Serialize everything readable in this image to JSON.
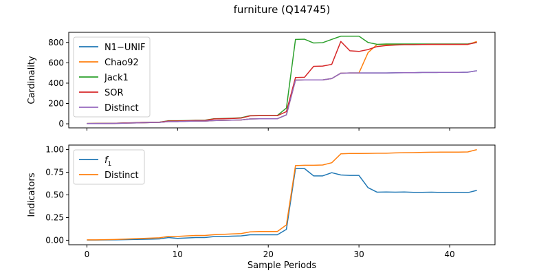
{
  "figure_title": "furniture (Q14745)",
  "chart_data": [
    {
      "type": "line",
      "ylabel": "Cardinality",
      "xlabel": "",
      "xlim": [
        -2,
        45
      ],
      "ylim": [
        -40,
        900
      ],
      "xticks": [
        0,
        10,
        20,
        30,
        40
      ],
      "yticks": [
        0,
        200,
        400,
        600,
        800
      ],
      "legend": "top-left",
      "x": [
        0,
        1,
        2,
        3,
        4,
        5,
        6,
        7,
        8,
        9,
        10,
        11,
        12,
        13,
        14,
        15,
        16,
        17,
        18,
        19,
        20,
        21,
        22,
        23,
        24,
        25,
        26,
        27,
        28,
        29,
        30,
        31,
        32,
        33,
        34,
        35,
        36,
        37,
        38,
        39,
        40,
        41,
        42,
        43
      ],
      "series": [
        {
          "name": "N1−UNIF",
          "color": "#1f77b4",
          "values": [
            2,
            2,
            3,
            4,
            6,
            8,
            10,
            12,
            14,
            22,
            22,
            25,
            27,
            27,
            32,
            34,
            36,
            38,
            48,
            50,
            50,
            50,
            88,
            430,
            432,
            432,
            432,
            445,
            498,
            500,
            500,
            500,
            500,
            500,
            502,
            503,
            503,
            505,
            505,
            506,
            506,
            506,
            508,
            522
          ]
        },
        {
          "name": "Chao92",
          "color": "#ff7f0e",
          "values": [
            2,
            2,
            3,
            4,
            6,
            8,
            10,
            12,
            14,
            22,
            22,
            25,
            27,
            27,
            32,
            34,
            36,
            38,
            48,
            50,
            50,
            50,
            88,
            430,
            432,
            432,
            432,
            445,
            498,
            500,
            500,
            700,
            780,
            780,
            780,
            780,
            780,
            780,
            780,
            780,
            780,
            780,
            780,
            810
          ]
        },
        {
          "name": "Jack1",
          "color": "#2ca02c",
          "values": [
            3,
            4,
            4,
            5,
            8,
            10,
            13,
            15,
            16,
            30,
            30,
            32,
            35,
            35,
            50,
            52,
            55,
            60,
            80,
            82,
            82,
            82,
            155,
            830,
            832,
            795,
            798,
            830,
            862,
            862,
            862,
            800,
            782,
            785,
            785,
            785,
            785,
            785,
            785,
            785,
            785,
            785,
            785,
            800
          ]
        },
        {
          "name": "SOR",
          "color": "#d62728",
          "values": [
            3,
            4,
            4,
            5,
            8,
            10,
            13,
            15,
            16,
            28,
            28,
            30,
            33,
            33,
            48,
            50,
            52,
            56,
            78,
            80,
            80,
            80,
            120,
            455,
            458,
            565,
            568,
            585,
            810,
            718,
            712,
            730,
            760,
            770,
            775,
            778,
            778,
            780,
            782,
            782,
            782,
            782,
            782,
            800
          ]
        },
        {
          "name": "Distinct",
          "color": "#9467bd",
          "values": [
            2,
            2,
            3,
            4,
            6,
            8,
            10,
            12,
            14,
            22,
            22,
            25,
            27,
            27,
            32,
            34,
            36,
            38,
            48,
            50,
            50,
            50,
            88,
            430,
            432,
            432,
            432,
            445,
            498,
            500,
            500,
            500,
            500,
            500,
            502,
            503,
            503,
            505,
            505,
            506,
            506,
            506,
            508,
            522
          ]
        }
      ]
    },
    {
      "type": "line",
      "ylabel": "Indicators",
      "xlabel": "Sample Periods",
      "xlim": [
        -2,
        45
      ],
      "ylim": [
        -0.05,
        1.05
      ],
      "xticks": [
        0,
        10,
        20,
        30,
        40
      ],
      "yticks": [
        0.0,
        0.25,
        0.5,
        0.75,
        1.0
      ],
      "ytick_labels": [
        "0.00",
        "0.25",
        "0.50",
        "0.75",
        "1.00"
      ],
      "legend": "top-left",
      "x": [
        0,
        1,
        2,
        3,
        4,
        5,
        6,
        7,
        8,
        9,
        10,
        11,
        12,
        13,
        14,
        15,
        16,
        17,
        18,
        19,
        20,
        21,
        22,
        23,
        24,
        25,
        26,
        27,
        28,
        29,
        30,
        31,
        32,
        33,
        34,
        35,
        36,
        37,
        38,
        39,
        40,
        41,
        42,
        43
      ],
      "series": [
        {
          "name": "f1",
          "legend_main": "f",
          "legend_sub": "1",
          "color": "#1f77b4",
          "values": [
            0.002,
            0.002,
            0.003,
            0.004,
            0.006,
            0.008,
            0.01,
            0.012,
            0.014,
            0.03,
            0.02,
            0.025,
            0.03,
            0.03,
            0.04,
            0.04,
            0.045,
            0.048,
            0.06,
            0.06,
            0.06,
            0.06,
            0.12,
            0.79,
            0.79,
            0.71,
            0.71,
            0.745,
            0.72,
            0.715,
            0.715,
            0.58,
            0.53,
            0.532,
            0.53,
            0.532,
            0.528,
            0.528,
            0.53,
            0.528,
            0.528,
            0.528,
            0.525,
            0.55
          ]
        },
        {
          "name": "Distinct",
          "legend_main": "Distinct",
          "legend_sub": "",
          "color": "#ff7f0e",
          "values": [
            0.004,
            0.004,
            0.006,
            0.008,
            0.012,
            0.015,
            0.019,
            0.023,
            0.027,
            0.042,
            0.042,
            0.048,
            0.052,
            0.052,
            0.061,
            0.065,
            0.069,
            0.073,
            0.092,
            0.096,
            0.096,
            0.096,
            0.169,
            0.823,
            0.827,
            0.827,
            0.83,
            0.855,
            0.953,
            0.957,
            0.957,
            0.958,
            0.96,
            0.96,
            0.964,
            0.966,
            0.967,
            0.969,
            0.971,
            0.972,
            0.972,
            0.972,
            0.974,
            1.0
          ]
        }
      ]
    }
  ]
}
